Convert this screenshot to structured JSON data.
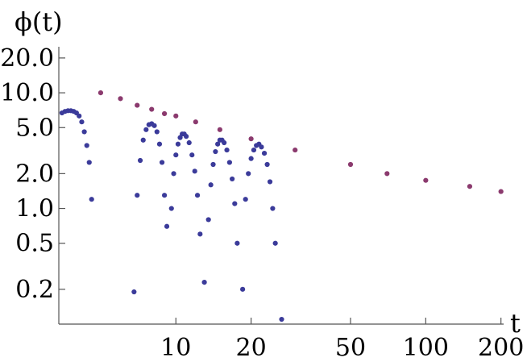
{
  "chart_data": {
    "type": "scatter",
    "title": "",
    "xlabel": "t",
    "ylabel": "ϕ(t)",
    "x_scale": "log",
    "y_scale": "log",
    "xlim": [
      3.4,
      205
    ],
    "ylim": [
      0.1,
      25
    ],
    "grid": false,
    "legend": "none",
    "x_ticks": [
      {
        "value": 10,
        "label": "10"
      },
      {
        "value": 20,
        "label": "20"
      },
      {
        "value": 50,
        "label": "50"
      },
      {
        "value": 100,
        "label": "100"
      },
      {
        "value": 200,
        "label": "200"
      }
    ],
    "y_ticks": [
      {
        "value": 0.2,
        "label": "0.2"
      },
      {
        "value": 0.5,
        "label": "0.5"
      },
      {
        "value": 1.0,
        "label": "1.0"
      },
      {
        "value": 2.0,
        "label": "2.0"
      },
      {
        "value": 5.0,
        "label": "5.0"
      },
      {
        "value": 10.0,
        "label": "10.0"
      },
      {
        "value": 20.0,
        "label": "20.0"
      }
    ],
    "series": [
      {
        "color": "#8b3a6e",
        "description_points": [
          [
            5,
            10.0
          ],
          [
            6,
            8.9
          ],
          [
            7,
            7.8
          ],
          [
            8,
            7.2
          ],
          [
            9,
            6.6
          ],
          [
            10,
            6.3
          ],
          [
            12,
            5.6
          ],
          [
            15,
            4.8
          ],
          [
            20,
            4.0
          ],
          [
            30,
            3.2
          ],
          [
            50,
            2.4
          ],
          [
            70,
            2.0
          ],
          [
            100,
            1.75
          ],
          [
            150,
            1.55
          ],
          [
            200,
            1.4
          ]
        ]
      },
      {
        "color": "#3b3b9a",
        "points": [
          [
            3.5,
            6.7
          ],
          [
            3.6,
            6.9
          ],
          [
            3.7,
            7.0
          ],
          [
            3.8,
            7.0
          ],
          [
            3.9,
            6.9
          ],
          [
            4.0,
            6.7
          ],
          [
            4.1,
            6.3
          ],
          [
            4.2,
            5.6
          ],
          [
            4.3,
            4.6
          ],
          [
            4.4,
            3.5
          ],
          [
            4.5,
            2.5
          ],
          [
            4.6,
            1.2
          ],
          [
            6.8,
            0.19
          ],
          [
            7.0,
            1.3
          ],
          [
            7.2,
            2.6
          ],
          [
            7.4,
            3.9
          ],
          [
            7.6,
            4.8
          ],
          [
            7.8,
            5.3
          ],
          [
            8.0,
            5.4
          ],
          [
            8.2,
            5.2
          ],
          [
            8.4,
            4.6
          ],
          [
            8.6,
            3.6
          ],
          [
            8.8,
            2.5
          ],
          [
            9.0,
            1.3
          ],
          [
            9.2,
            0.7
          ],
          [
            9.6,
            1.0
          ],
          [
            9.8,
            2.0
          ],
          [
            10.0,
            2.9
          ],
          [
            10.2,
            3.6
          ],
          [
            10.4,
            4.1
          ],
          [
            10.6,
            4.4
          ],
          [
            10.8,
            4.4
          ],
          [
            11.0,
            4.2
          ],
          [
            11.3,
            3.7
          ],
          [
            11.6,
            2.9
          ],
          [
            11.9,
            2.1
          ],
          [
            12.2,
            1.3
          ],
          [
            12.5,
            0.6
          ],
          [
            13.0,
            0.23
          ],
          [
            13.5,
            0.8
          ],
          [
            13.8,
            1.6
          ],
          [
            14.1,
            2.4
          ],
          [
            14.4,
            3.1
          ],
          [
            14.7,
            3.6
          ],
          [
            15.0,
            3.9
          ],
          [
            15.3,
            3.9
          ],
          [
            15.6,
            3.7
          ],
          [
            16.0,
            3.2
          ],
          [
            16.4,
            2.5
          ],
          [
            16.8,
            1.8
          ],
          [
            17.2,
            1.1
          ],
          [
            17.6,
            0.5
          ],
          [
            18.5,
            0.2
          ],
          [
            19,
            1.2
          ],
          [
            19.5,
            2.0
          ],
          [
            20,
            2.7
          ],
          [
            20.5,
            3.2
          ],
          [
            21,
            3.5
          ],
          [
            21.5,
            3.6
          ],
          [
            22,
            3.4
          ],
          [
            22.6,
            3.0
          ],
          [
            23.2,
            2.4
          ],
          [
            23.8,
            1.7
          ],
          [
            24.4,
            1.0
          ],
          [
            25,
            0.5
          ],
          [
            26.5,
            0.11
          ]
        ]
      }
    ]
  }
}
